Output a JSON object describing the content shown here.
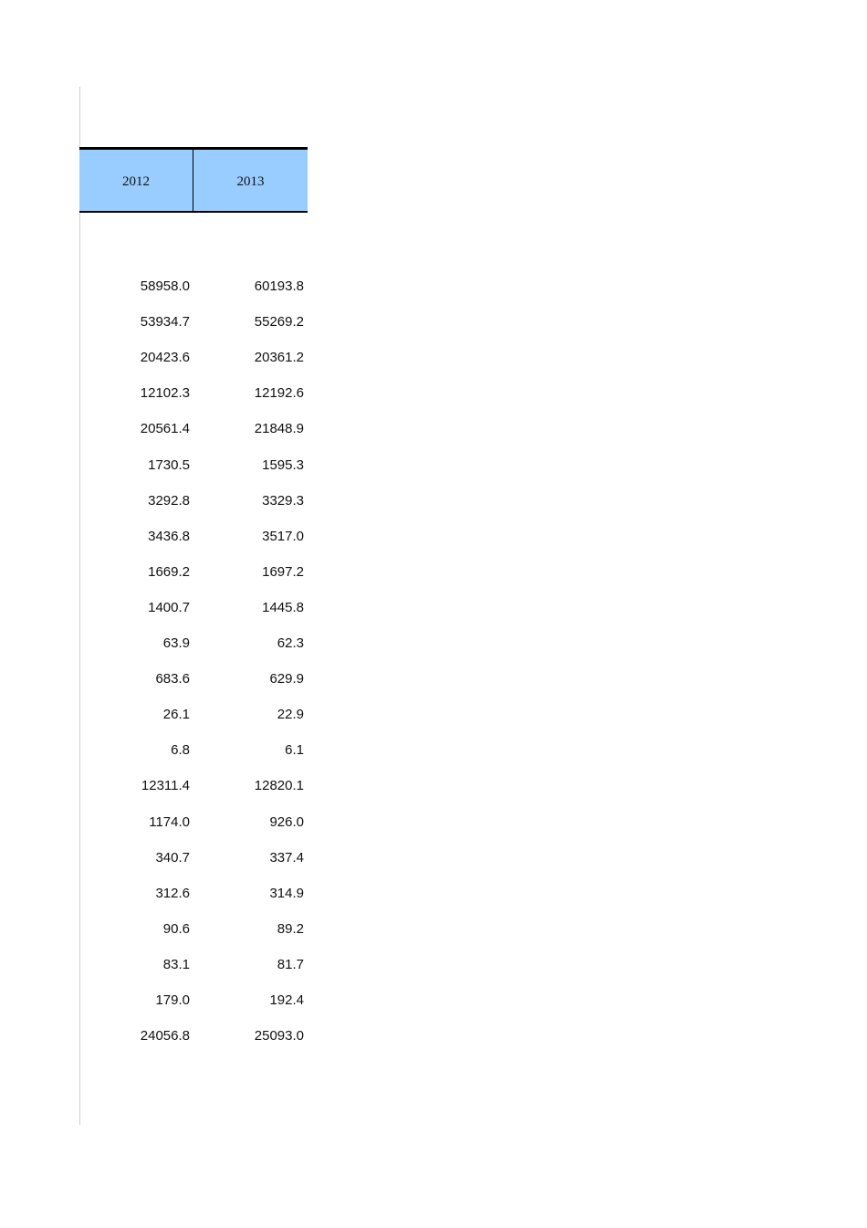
{
  "table": {
    "header_color": "#99ccff",
    "columns": [
      "2012",
      "2013"
    ],
    "rows": [
      [
        "58958.0",
        "60193.8"
      ],
      [
        "53934.7",
        "55269.2"
      ],
      [
        "20423.6",
        "20361.2"
      ],
      [
        "12102.3",
        "12192.6"
      ],
      [
        "20561.4",
        "21848.9"
      ],
      [
        "1730.5",
        "1595.3"
      ],
      [
        "3292.8",
        "3329.3"
      ],
      [
        "3436.8",
        "3517.0"
      ],
      [
        "1669.2",
        "1697.2"
      ],
      [
        "1400.7",
        "1445.8"
      ],
      [
        "63.9",
        "62.3"
      ],
      [
        "683.6",
        "629.9"
      ],
      [
        "26.1",
        "22.9"
      ],
      [
        "6.8",
        "6.1"
      ],
      [
        "12311.4",
        "12820.1"
      ],
      [
        "1174.0",
        "926.0"
      ],
      [
        "340.7",
        "337.4"
      ],
      [
        "312.6",
        "314.9"
      ],
      [
        "90.6",
        "89.2"
      ],
      [
        "83.1",
        "81.7"
      ],
      [
        "179.0",
        "192.4"
      ],
      [
        "24056.8",
        "25093.0"
      ]
    ]
  }
}
